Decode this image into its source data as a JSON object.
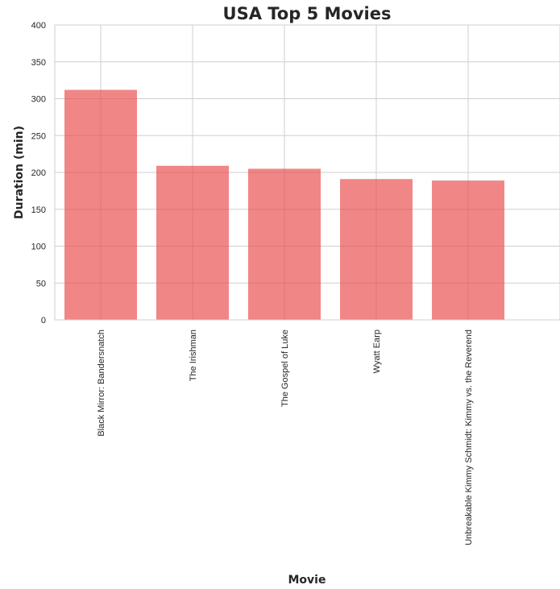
{
  "chart_data": {
    "type": "bar",
    "title": "USA Top 5 Movies",
    "xlabel": "Movie",
    "ylabel": "Duration (min)",
    "ylim": [
      0,
      400
    ],
    "yticks": [
      0,
      50,
      100,
      150,
      200,
      250,
      300,
      350,
      400
    ],
    "grid": true,
    "categories": [
      "Black Mirror: Bandersnatch",
      "The Irishman",
      "The Gospel of Luke",
      "Wyatt Earp",
      "Unbreakable Kimmy Schmidt: Kimmy vs. the Reverend"
    ],
    "values": [
      312,
      209,
      205,
      191,
      189
    ],
    "bar_color": "#f08080"
  }
}
